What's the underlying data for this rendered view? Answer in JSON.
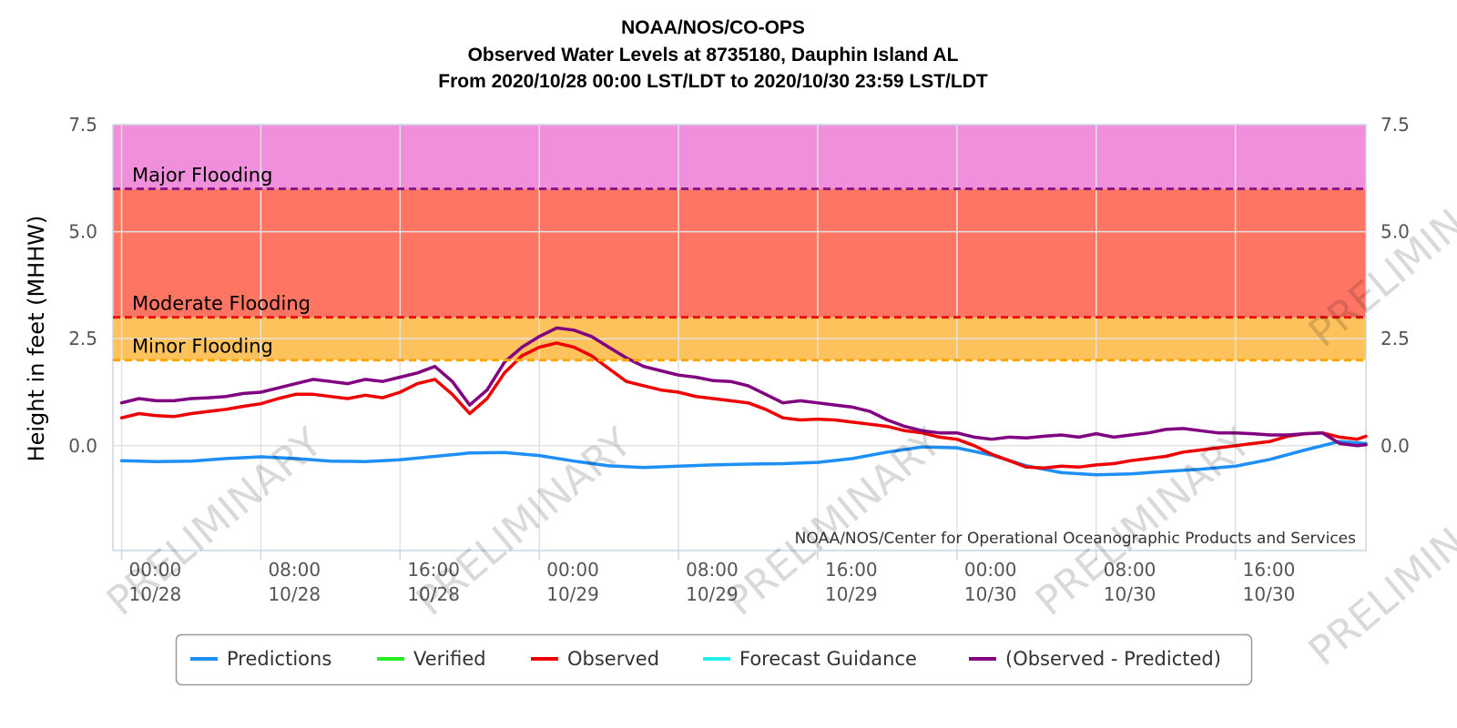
{
  "chart_data": {
    "type": "line",
    "title": {
      "line1": "NOAA/NOS/CO-OPS",
      "line2": "Observed Water Levels at 8735180, Dauphin Island AL",
      "line3": "From 2020/10/28 00:00 LST/LDT to 2020/10/30 23:59 LST/LDT"
    },
    "ylabel": "Height in feet (MHHW)",
    "xlabel": "",
    "credit": "NOAA/NOS/Center for Operational Oceanographic Products and Services",
    "watermark": "PRELIMINARY",
    "ylim": [
      -2.45,
      7.5
    ],
    "xlim_hours": [
      -0.5,
      71.5
    ],
    "y_ticks": [
      "7.5",
      "5.0",
      "2.5",
      "0.0"
    ],
    "y_tick_values": [
      7.5,
      5.0,
      2.5,
      0.0
    ],
    "x_ticks": [
      {
        "h": 0,
        "time": "00:00",
        "date": "10/28"
      },
      {
        "h": 8,
        "time": "08:00",
        "date": "10/28"
      },
      {
        "h": 16,
        "time": "16:00",
        "date": "10/28"
      },
      {
        "h": 24,
        "time": "00:00",
        "date": "10/29"
      },
      {
        "h": 32,
        "time": "08:00",
        "date": "10/29"
      },
      {
        "h": 40,
        "time": "16:00",
        "date": "10/29"
      },
      {
        "h": 48,
        "time": "00:00",
        "date": "10/30"
      },
      {
        "h": 56,
        "time": "08:00",
        "date": "10/30"
      },
      {
        "h": 64,
        "time": "16:00",
        "date": "10/30"
      }
    ],
    "flood_bands": [
      {
        "name": "Major Flooding",
        "from": 6.0,
        "to": 7.5,
        "fill": "#f08fdc",
        "line": "#8b1a8b"
      },
      {
        "name": "Moderate Flooding",
        "from": 3.0,
        "to": 6.0,
        "fill": "#ff7563",
        "line": "#ee1111"
      },
      {
        "name": "Minor Flooding",
        "from": 2.0,
        "to": 3.0,
        "fill": "#fec25c",
        "line": "#ffa500"
      }
    ],
    "legend": {
      "placement": "bottom-center",
      "items": [
        {
          "label": "Predictions",
          "color": "#1e8ff5"
        },
        {
          "label": "Verified",
          "color": "#22ee22"
        },
        {
          "label": "Observed",
          "color": "#ee0000"
        },
        {
          "label": "Forecast Guidance",
          "color": "#22eeee"
        },
        {
          "label": "(Observed - Predicted)",
          "color": "#800080"
        }
      ]
    },
    "series": [
      {
        "name": "Predictions",
        "color": "#1e8ff5",
        "x": [
          0,
          2,
          4,
          6,
          8,
          10,
          12,
          14,
          16,
          18,
          20,
          22,
          24,
          26,
          28,
          30,
          32,
          34,
          36,
          38,
          40,
          42,
          44,
          46,
          48,
          50,
          52,
          54,
          56,
          58,
          60,
          62,
          64,
          66,
          68,
          70,
          71.5
        ],
        "values": [
          -0.35,
          -0.37,
          -0.36,
          -0.3,
          -0.26,
          -0.3,
          -0.36,
          -0.37,
          -0.33,
          -0.25,
          -0.17,
          -0.16,
          -0.23,
          -0.36,
          -0.47,
          -0.51,
          -0.48,
          -0.45,
          -0.43,
          -0.42,
          -0.39,
          -0.3,
          -0.15,
          -0.03,
          -0.05,
          -0.22,
          -0.47,
          -0.63,
          -0.68,
          -0.66,
          -0.6,
          -0.55,
          -0.48,
          -0.32,
          -0.1,
          0.1,
          0.05
        ]
      },
      {
        "name": "Observed",
        "color": "#ee0000",
        "x": [
          0,
          1,
          2,
          3,
          4,
          5,
          6,
          7,
          8,
          9,
          10,
          11,
          12,
          13,
          14,
          15,
          16,
          17,
          18,
          19,
          20,
          21,
          22,
          23,
          24,
          25,
          26,
          27,
          28,
          29,
          30,
          31,
          32,
          33,
          34,
          35,
          36,
          37,
          38,
          39,
          40,
          41,
          42,
          43,
          44,
          45,
          46,
          47,
          48,
          49,
          50,
          51,
          52,
          53,
          54,
          55,
          56,
          57,
          58,
          59,
          60,
          61,
          62,
          63,
          64,
          65,
          66,
          67,
          68,
          69,
          70,
          71,
          71.5
        ],
        "values": [
          0.65,
          0.75,
          0.7,
          0.68,
          0.75,
          0.8,
          0.85,
          0.92,
          0.98,
          1.1,
          1.2,
          1.2,
          1.15,
          1.1,
          1.18,
          1.12,
          1.25,
          1.45,
          1.55,
          1.2,
          0.75,
          1.1,
          1.7,
          2.1,
          2.3,
          2.4,
          2.3,
          2.1,
          1.8,
          1.5,
          1.4,
          1.3,
          1.25,
          1.15,
          1.1,
          1.05,
          1.0,
          0.85,
          0.65,
          0.6,
          0.62,
          0.6,
          0.55,
          0.5,
          0.45,
          0.35,
          0.3,
          0.2,
          0.15,
          0.0,
          -0.2,
          -0.35,
          -0.5,
          -0.52,
          -0.48,
          -0.5,
          -0.45,
          -0.42,
          -0.35,
          -0.3,
          -0.25,
          -0.15,
          -0.1,
          -0.05,
          0.0,
          0.05,
          0.1,
          0.22,
          0.28,
          0.3,
          0.2,
          0.15,
          0.22
        ]
      },
      {
        "name": "(Observed - Predicted)",
        "color": "#800080",
        "x": [
          0,
          1,
          2,
          3,
          4,
          5,
          6,
          7,
          8,
          9,
          10,
          11,
          12,
          13,
          14,
          15,
          16,
          17,
          18,
          19,
          20,
          21,
          22,
          23,
          24,
          25,
          26,
          27,
          28,
          29,
          30,
          31,
          32,
          33,
          34,
          35,
          36,
          37,
          38,
          39,
          40,
          41,
          42,
          43,
          44,
          45,
          46,
          47,
          48,
          49,
          50,
          51,
          52,
          53,
          54,
          55,
          56,
          57,
          58,
          59,
          60,
          61,
          62,
          63,
          64,
          65,
          66,
          67,
          68,
          69,
          70,
          71,
          71.5
        ],
        "values": [
          1.0,
          1.1,
          1.05,
          1.05,
          1.1,
          1.12,
          1.15,
          1.22,
          1.25,
          1.35,
          1.45,
          1.55,
          1.5,
          1.45,
          1.55,
          1.5,
          1.6,
          1.7,
          1.85,
          1.5,
          0.95,
          1.3,
          1.95,
          2.3,
          2.55,
          2.75,
          2.7,
          2.55,
          2.3,
          2.05,
          1.85,
          1.75,
          1.65,
          1.6,
          1.52,
          1.5,
          1.4,
          1.2,
          1.0,
          1.05,
          1.0,
          0.95,
          0.9,
          0.8,
          0.6,
          0.45,
          0.35,
          0.3,
          0.3,
          0.2,
          0.15,
          0.2,
          0.18,
          0.22,
          0.25,
          0.2,
          0.28,
          0.2,
          0.25,
          0.3,
          0.38,
          0.4,
          0.35,
          0.3,
          0.3,
          0.28,
          0.25,
          0.25,
          0.28,
          0.3,
          0.05,
          0.0,
          0.02
        ]
      }
    ]
  }
}
